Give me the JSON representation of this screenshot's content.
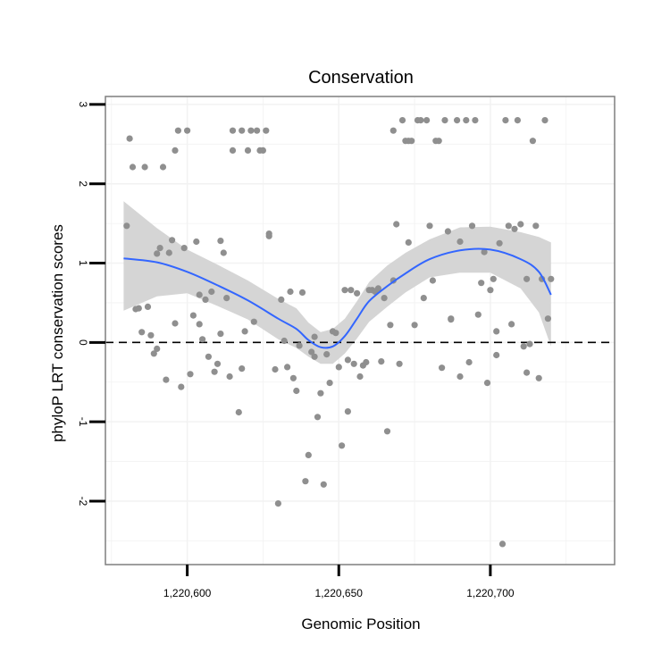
{
  "chart_data": {
    "type": "scatter",
    "title": "Conservation",
    "xlabel": "Genomic Position",
    "ylabel": "phyloP LRT conservation scores",
    "xlim": [
      1220573,
      1220741
    ],
    "ylim": [
      -2.8,
      3.1
    ],
    "x_ticks": [
      1220600,
      1220650,
      1220700
    ],
    "x_tick_labels": [
      "1,220,600",
      "1,220,650",
      "1,220,700"
    ],
    "y_ticks": [
      -2,
      -1,
      0,
      1,
      2,
      3
    ],
    "y_tick_labels": [
      "-2",
      "-1",
      "0",
      "1",
      "2",
      "3"
    ],
    "grid": true,
    "reference_line": {
      "y": 0,
      "style": "dashed"
    },
    "colors": {
      "points": "#8f8f8f",
      "smooth": "#3366ff",
      "band": "#d3d3d3",
      "grid": "#f2f2f2",
      "border": "#7f7f7f"
    },
    "points": [
      [
        1220580,
        1.47
      ],
      [
        1220581,
        2.57
      ],
      [
        1220582,
        2.21
      ],
      [
        1220583,
        0.42
      ],
      [
        1220584,
        0.43
      ],
      [
        1220585,
        0.13
      ],
      [
        1220586,
        2.21
      ],
      [
        1220587,
        0.45
      ],
      [
        1220588,
        0.09
      ],
      [
        1220589,
        -0.14
      ],
      [
        1220590,
        1.12
      ],
      [
        1220590,
        -0.08
      ],
      [
        1220591,
        1.19
      ],
      [
        1220592,
        2.21
      ],
      [
        1220593,
        -0.47
      ],
      [
        1220594,
        1.13
      ],
      [
        1220595,
        1.29
      ],
      [
        1220596,
        0.24
      ],
      [
        1220596,
        2.42
      ],
      [
        1220597,
        2.67
      ],
      [
        1220598,
        -0.56
      ],
      [
        1220599,
        1.19
      ],
      [
        1220600,
        2.67
      ],
      [
        1220601,
        -0.4
      ],
      [
        1220602,
        0.34
      ],
      [
        1220603,
        1.27
      ],
      [
        1220604,
        0.23
      ],
      [
        1220604,
        0.6
      ],
      [
        1220605,
        0.04
      ],
      [
        1220606,
        0.54
      ],
      [
        1220607,
        -0.18
      ],
      [
        1220608,
        0.64
      ],
      [
        1220609,
        -0.37
      ],
      [
        1220610,
        -0.27
      ],
      [
        1220611,
        1.28
      ],
      [
        1220611,
        0.11
      ],
      [
        1220612,
        1.13
      ],
      [
        1220613,
        0.56
      ],
      [
        1220614,
        -0.43
      ],
      [
        1220615,
        2.42
      ],
      [
        1220615,
        2.67
      ],
      [
        1220617,
        -0.88
      ],
      [
        1220618,
        -0.33
      ],
      [
        1220618,
        2.67
      ],
      [
        1220619,
        0.14
      ],
      [
        1220620,
        2.42
      ],
      [
        1220621,
        2.67
      ],
      [
        1220622,
        0.26
      ],
      [
        1220623,
        2.67
      ],
      [
        1220624,
        2.42
      ],
      [
        1220625,
        2.42
      ],
      [
        1220626,
        2.67
      ],
      [
        1220627,
        1.37
      ],
      [
        1220627,
        1.34
      ],
      [
        1220629,
        -0.34
      ],
      [
        1220630,
        -2.03
      ],
      [
        1220631,
        0.54
      ],
      [
        1220632,
        0.02
      ],
      [
        1220633,
        -0.31
      ],
      [
        1220634,
        0.64
      ],
      [
        1220635,
        -0.45
      ],
      [
        1220636,
        -0.61
      ],
      [
        1220637,
        -0.04
      ],
      [
        1220638,
        0.63
      ],
      [
        1220639,
        -1.75
      ],
      [
        1220640,
        -1.42
      ],
      [
        1220641,
        -0.12
      ],
      [
        1220642,
        0.07
      ],
      [
        1220642,
        -0.18
      ],
      [
        1220643,
        -0.94
      ],
      [
        1220644,
        -0.64
      ],
      [
        1220645,
        -1.79
      ],
      [
        1220646,
        -0.15
      ],
      [
        1220647,
        -0.51
      ],
      [
        1220648,
        0.14
      ],
      [
        1220649,
        0.12
      ],
      [
        1220650,
        -0.31
      ],
      [
        1220651,
        -1.3
      ],
      [
        1220652,
        0.66
      ],
      [
        1220653,
        -0.87
      ],
      [
        1220653,
        -0.22
      ],
      [
        1220654,
        0.66
      ],
      [
        1220655,
        -0.27
      ],
      [
        1220656,
        0.62
      ],
      [
        1220657,
        -0.43
      ],
      [
        1220658,
        -0.29
      ],
      [
        1220659,
        -0.25
      ],
      [
        1220660,
        0.66
      ],
      [
        1220661,
        0.66
      ],
      [
        1220662,
        0.64
      ],
      [
        1220663,
        0.68
      ],
      [
        1220664,
        -0.24
      ],
      [
        1220665,
        0.56
      ],
      [
        1220666,
        -1.12
      ],
      [
        1220667,
        0.22
      ],
      [
        1220668,
        2.67
      ],
      [
        1220668,
        0.78
      ],
      [
        1220669,
        1.49
      ],
      [
        1220670,
        -0.27
      ],
      [
        1220671,
        2.8
      ],
      [
        1220672,
        2.54
      ],
      [
        1220673,
        1.26
      ],
      [
        1220673,
        2.54
      ],
      [
        1220674,
        2.54
      ],
      [
        1220675,
        0.22
      ],
      [
        1220676,
        2.8
      ],
      [
        1220677,
        2.8
      ],
      [
        1220678,
        0.56
      ],
      [
        1220679,
        2.8
      ],
      [
        1220680,
        1.47
      ],
      [
        1220681,
        0.78
      ],
      [
        1220682,
        2.54
      ],
      [
        1220683,
        2.54
      ],
      [
        1220684,
        -0.32
      ],
      [
        1220685,
        2.8
      ],
      [
        1220686,
        1.4
      ],
      [
        1220687,
        0.3
      ],
      [
        1220687,
        0.29
      ],
      [
        1220689,
        2.8
      ],
      [
        1220690,
        -0.43
      ],
      [
        1220690,
        1.27
      ],
      [
        1220692,
        2.8
      ],
      [
        1220693,
        -0.25
      ],
      [
        1220694,
        1.47
      ],
      [
        1220695,
        2.8
      ],
      [
        1220696,
        0.35
      ],
      [
        1220697,
        0.75
      ],
      [
        1220698,
        1.14
      ],
      [
        1220699,
        -0.51
      ],
      [
        1220700,
        0.66
      ],
      [
        1220701,
        0.8
      ],
      [
        1220702,
        -0.16
      ],
      [
        1220702,
        0.14
      ],
      [
        1220703,
        1.25
      ],
      [
        1220704,
        -2.54
      ],
      [
        1220705,
        2.8
      ],
      [
        1220706,
        1.47
      ],
      [
        1220707,
        0.23
      ],
      [
        1220708,
        1.43
      ],
      [
        1220709,
        2.8
      ],
      [
        1220710,
        1.49
      ],
      [
        1220711,
        -0.05
      ],
      [
        1220712,
        -0.38
      ],
      [
        1220712,
        0.8
      ],
      [
        1220713,
        -0.02
      ],
      [
        1220714,
        2.54
      ],
      [
        1220715,
        1.47
      ],
      [
        1220716,
        -0.45
      ],
      [
        1220717,
        0.8
      ],
      [
        1220718,
        2.8
      ],
      [
        1220719,
        0.3
      ],
      [
        1220720,
        0.8
      ]
    ],
    "smooth_line": [
      {
        "x": 1220579,
        "y": 1.06,
        "lo": 0.4,
        "hi": 1.78
      },
      {
        "x": 1220590,
        "y": 1.01,
        "lo": 0.58,
        "hi": 1.44
      },
      {
        "x": 1220600,
        "y": 0.89,
        "lo": 0.62,
        "hi": 1.17
      },
      {
        "x": 1220610,
        "y": 0.72,
        "lo": 0.46,
        "hi": 0.98
      },
      {
        "x": 1220620,
        "y": 0.53,
        "lo": 0.29,
        "hi": 0.78
      },
      {
        "x": 1220630,
        "y": 0.3,
        "lo": 0.04,
        "hi": 0.55
      },
      {
        "x": 1220636,
        "y": 0.17,
        "lo": -0.07,
        "hi": 0.43
      },
      {
        "x": 1220640,
        "y": 0.03,
        "lo": -0.18,
        "hi": 0.25
      },
      {
        "x": 1220644,
        "y": -0.06,
        "lo": -0.27,
        "hi": 0.13
      },
      {
        "x": 1220648,
        "y": -0.05,
        "lo": -0.27,
        "hi": 0.17
      },
      {
        "x": 1220652,
        "y": 0.08,
        "lo": -0.14,
        "hi": 0.3
      },
      {
        "x": 1220656,
        "y": 0.3,
        "lo": 0.05,
        "hi": 0.52
      },
      {
        "x": 1220660,
        "y": 0.52,
        "lo": 0.26,
        "hi": 0.76
      },
      {
        "x": 1220666,
        "y": 0.71,
        "lo": 0.45,
        "hi": 0.97
      },
      {
        "x": 1220672,
        "y": 0.87,
        "lo": 0.63,
        "hi": 1.13
      },
      {
        "x": 1220680,
        "y": 1.05,
        "lo": 0.82,
        "hi": 1.3
      },
      {
        "x": 1220690,
        "y": 1.16,
        "lo": 0.88,
        "hi": 1.45
      },
      {
        "x": 1220700,
        "y": 1.17,
        "lo": 0.88,
        "hi": 1.46
      },
      {
        "x": 1220710,
        "y": 1.05,
        "lo": 0.68,
        "hi": 1.39
      },
      {
        "x": 1220716,
        "y": 0.89,
        "lo": 0.38,
        "hi": 1.33
      },
      {
        "x": 1220720,
        "y": 0.6,
        "lo": -0.05,
        "hi": 1.26
      }
    ]
  }
}
